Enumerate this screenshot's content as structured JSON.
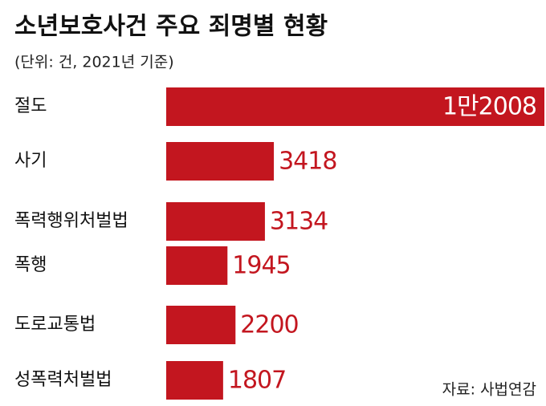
{
  "chart_data": {
    "type": "bar",
    "orientation": "horizontal",
    "title": "소년보호사건 주요 죄명별 현황",
    "subtitle": "(단위: 건, 2021년 기준)",
    "categories": [
      "절도",
      "사기",
      "폭력행위처벌법",
      "폭행",
      "도로교통법",
      "성폭력처벌법"
    ],
    "values": [
      12008,
      3418,
      3134,
      1945,
      2200,
      1807
    ],
    "value_labels": [
      "1만2008",
      "3418",
      "3134",
      "1945",
      "2200",
      "1807"
    ],
    "color": "#c3161f",
    "source": "자료: 사법연감"
  }
}
